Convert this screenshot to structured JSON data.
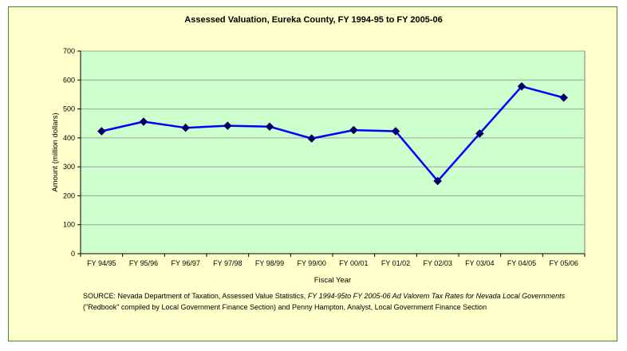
{
  "chart_data": {
    "type": "line",
    "title": "Assessed Valuation, Eureka County, FY 1994-95 to FY 2005-06",
    "xlabel": "Fiscal Year",
    "ylabel": "Amount (million dollars)",
    "categories": [
      "FY 94/95",
      "FY 95/96",
      "FY 96/97",
      "FY 97/98",
      "FY 98/99",
      "FY 99/00",
      "FY 00/01",
      "FY 01/02",
      "FY 02/03",
      "FY 03/04",
      "FY 04/05",
      "FY 05/06"
    ],
    "series": [
      {
        "values": [
          423,
          456,
          435,
          442,
          439,
          398,
          427,
          423,
          251,
          415,
          578,
          539
        ]
      }
    ],
    "ylim": [
      0,
      700
    ],
    "yticks": [
      "0",
      "100",
      "200",
      "300",
      "400",
      "500",
      "600",
      "700"
    ],
    "grid": true,
    "colors": {
      "line": "#0000ff",
      "marker": "#000066",
      "plot_bg": "#ccffcc",
      "chart_bg": "#ffffcc"
    }
  },
  "source": {
    "part1": "SOURCE: Nevada Department of Taxation, Assessed Value Statistics, ",
    "part2_italic": "FY 1994-95to FY 2005-06 Ad Valorem Tax Rates for Nevada Local Governments",
    "part3": " (\"Redbook\" compiled by Local Government Finance Section) and Penny Hampton, Analyst, Local Government Finance Section"
  }
}
